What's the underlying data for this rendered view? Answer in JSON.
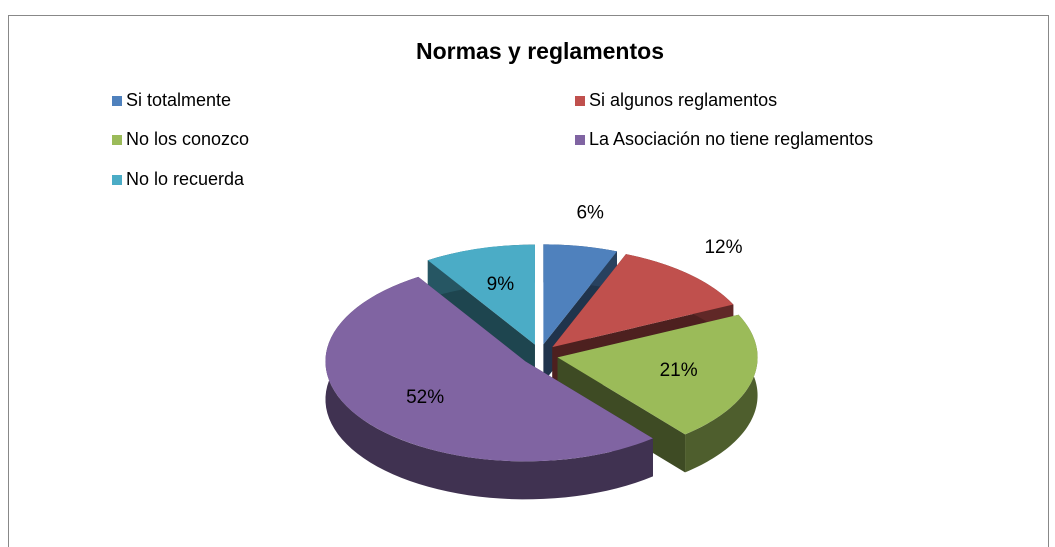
{
  "chart_data": {
    "type": "pie3d",
    "title": "Normas y reglamentos",
    "categories": [
      "Si totalmente",
      "Si algunos reglamentos",
      "No los conozco",
      "La Asociación no tiene reglamentos",
      "No lo recuerda"
    ],
    "values": [
      6,
      12,
      21,
      52,
      9
    ],
    "value_labels": [
      "6%",
      "12%",
      "21%",
      "52%",
      "9%"
    ],
    "colors": [
      "#4f81bd",
      "#c0504d",
      "#9bbb59",
      "#8064a2",
      "#4bacc6"
    ],
    "legend": "top"
  }
}
